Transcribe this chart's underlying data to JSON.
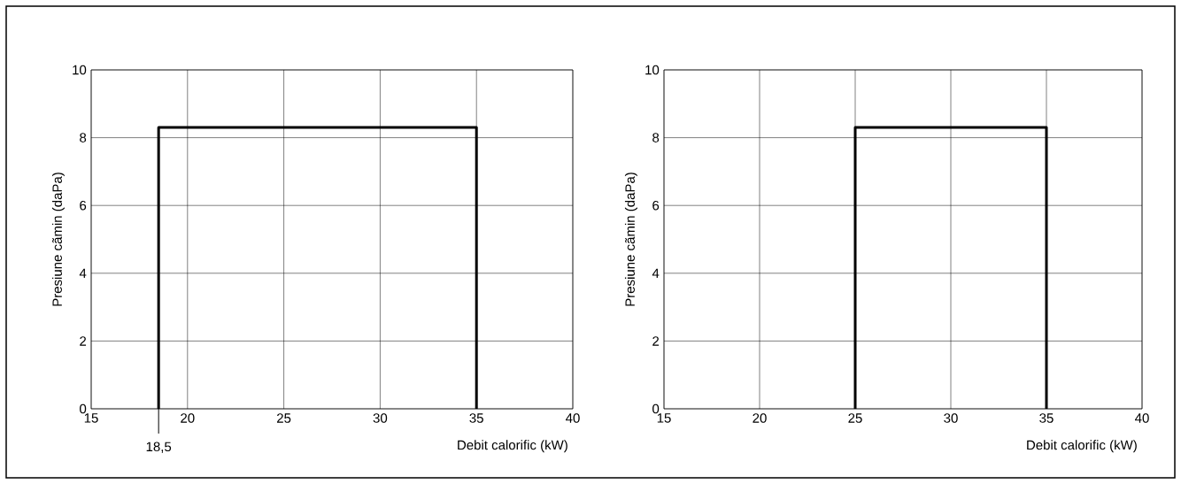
{
  "chart_data": [
    {
      "type": "line",
      "xlabel": "Debit calorific (kW)",
      "ylabel": "Presiune cãmin (daPa)",
      "x": [
        18.5,
        18.5,
        35,
        35
      ],
      "values": [
        0,
        8.3,
        8.3,
        0
      ],
      "color": "#000000",
      "xlim": [
        15,
        40
      ],
      "ylim": [
        0,
        10
      ],
      "xticks": [
        15,
        20,
        25,
        30,
        35,
        40
      ],
      "yticks": [
        0,
        2,
        4,
        6,
        8,
        10
      ],
      "grid": true,
      "annotations": [
        {
          "text": "18,5",
          "x": 18.5,
          "y": 0
        }
      ]
    },
    {
      "type": "line",
      "xlabel": "Debit calorific (kW)",
      "ylabel": "Presiune cãmin (daPa)",
      "x": [
        25,
        25,
        35,
        35
      ],
      "values": [
        0,
        8.3,
        8.3,
        0
      ],
      "color": "#000000",
      "xlim": [
        15,
        40
      ],
      "ylim": [
        0,
        10
      ],
      "xticks": [
        15,
        20,
        25,
        30,
        35,
        40
      ],
      "yticks": [
        0,
        2,
        4,
        6,
        8,
        10
      ],
      "grid": true
    }
  ]
}
